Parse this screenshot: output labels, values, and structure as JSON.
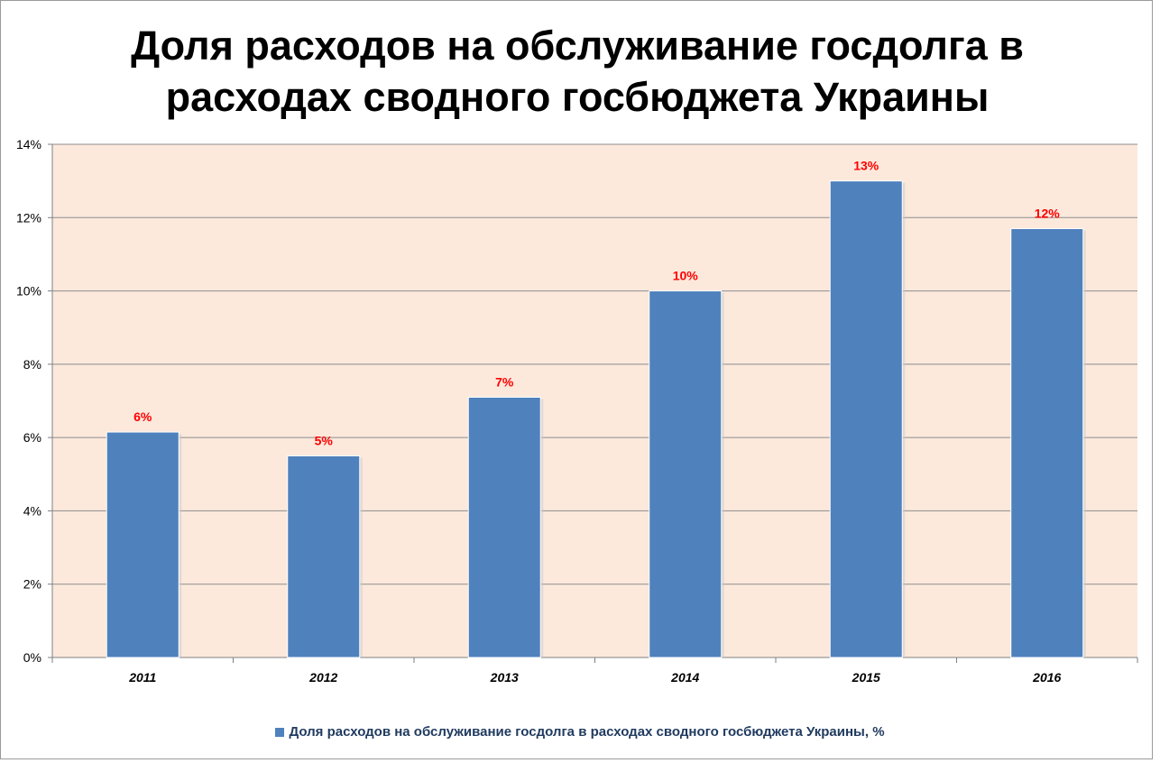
{
  "chart_data": {
    "type": "bar",
    "title": "Доля расходов на обслуживание госдолга в расходах сводного госбюджета Украины",
    "categories": [
      "2011",
      "2012",
      "2013",
      "2014",
      "2015",
      "2016"
    ],
    "series": [
      {
        "name": "Доля расходов на обслуживание госдолга в расходах сводного госбюджета Украины, %",
        "values": [
          6.15,
          5.5,
          7.1,
          10.0,
          13.0,
          11.7
        ],
        "data_labels": [
          "6%",
          "5%",
          "7%",
          "10%",
          "13%",
          "12%"
        ]
      }
    ],
    "ylim": [
      0,
      14
    ],
    "y_ticks": [
      "0%",
      "2%",
      "4%",
      "6%",
      "8%",
      "10%",
      "12%",
      "14%"
    ],
    "xlabel": "",
    "ylabel": "",
    "grid": true,
    "legend_position": "bottom",
    "colors": {
      "bar": "#4f81bd",
      "plot_background": "#fce9dc",
      "data_label": "#ff0000",
      "gridline": "#8c8c8c"
    }
  }
}
